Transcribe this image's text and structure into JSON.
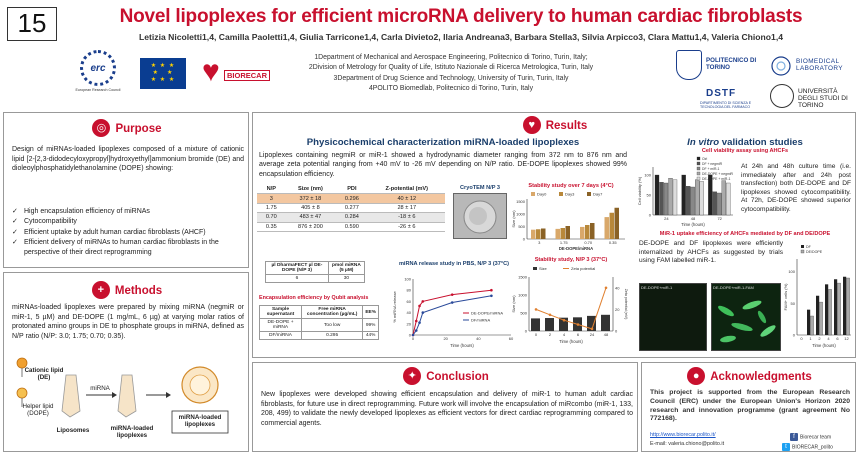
{
  "header": {
    "number": "15",
    "title": "Novel lipoplexes for efficient microRNA delivery to human cardiac fibroblasts",
    "authors": "Letizia Nicoletti1,4, Camilla Paoletti1,4, Giulia Tarricone1,4, Carla Divieto2, Ilaria Andreana3, Barbara Stella3, Silvia Arpicco3, Clara Mattu1,4, Valeria Chiono1,4",
    "affiliations": [
      "1Department of Mechanical and Aerospace Engineering, Politecnico di Torino, Turin, Italy;",
      "2Division of Metrology for Quality of Life, Istituto Nazionale di Ricerca Metrologica, Turin, Italy",
      "3Department of Drug Science and Technology, University of Turin, Turin, Italy",
      "4POLITO Biomedlab, Politecnico di Torino, Turin, Italy"
    ]
  },
  "logos": {
    "erc": "erc",
    "erc_caption": "European Research Council",
    "biorecar": "BIORECAR",
    "polito": "POLITECNICO DI TORINO",
    "biomed": "BIOMEDICAL LABORATORY",
    "dstf": "DSTF",
    "dstf_sub": "DIPARTIMENTO DI SCIENZA E TECNOLOGIA DEL FARMACO",
    "unito": "UNIVERSITÀ DEGLI STUDI DI TORINO"
  },
  "purpose": {
    "title": "Purpose",
    "text": "Design of miRNAs-loaded lipoplexes composed of a mixture of cationic lipid [2-[2,3-didodecyloxypropyl]hydroxyethyl]ammonium bromide (DE) and dioleoylphosphatidylethanolamine (DOPE) showing:",
    "bullets": [
      "High encapsulation efficiency of miRNAs",
      "Cytocompatibility",
      "Efficient uptake by adult human cardiac fibroblasts (AHCF)",
      "Efficient delivery of miRNAs to human cardiac fibroblasts in the perspective of their direct reprogramming"
    ]
  },
  "methods": {
    "title": "Methods",
    "text": "miRNAs-loaded lipoplexes were prepared by mixing miRNA (negmiR or miR-1, 5 µM) and DE-DOPE (1 mg/mL, 6 µg) at varying molar ratios of protonated amino groups in DE to phosphate groups in miRNA, defined as N/P ratio (N/P: 3.0; 1.75; 0.70; 0.35).",
    "cationic_lipid": "Cationic lipid (DE)",
    "helper_lipid": "Helper lipid (DOPE)",
    "liposomes": "Liposomes",
    "mirna": "miRNA",
    "loaded": "miRNA-loaded lipoplexes",
    "result": "miRNA-loaded lipoplexes"
  },
  "results": {
    "title": "Results",
    "physchem": {
      "title": "Physicochemical characterization miRNA-loaded lipoplexes",
      "text": "Lipoplexes containing negmiR or miR-1 showed a hydrodynamic diameter ranging from 372 nm to 876 nm and average zeta potential ranging from +40 mV to -26 mV depending on N/P ratio. DE-DOPE lipoplexes showed 99% encapsulation efficiency.",
      "table_headers": [
        "N/P",
        "Size (nm)",
        "PDI",
        "Z-potential (mV)"
      ],
      "table_rows": [
        [
          "3",
          "372 ± 18",
          "0.296",
          "40 ± 12"
        ],
        [
          "1.75",
          "405 ± 8",
          "0.277",
          "28 ± 17"
        ],
        [
          "0.70",
          "483 ± 47",
          "0.284",
          "-18 ± 6"
        ],
        [
          "0.35",
          "876 ± 200",
          "0.590",
          "-26 ± 6"
        ]
      ],
      "cryotem": "CryoTEM N/P 3",
      "stability_title": "Stability study over 7 days (4°C)",
      "stability_legend": [
        "Day0",
        "Day3",
        "Day7"
      ],
      "stability_xlabel": "DE-DOPE/miRNA",
      "stability_ylabel": "Size (nm)",
      "stability_cats": [
        "3",
        "1.75",
        "0.70",
        "0.35"
      ],
      "stab2_title": "Stability study, N/P 3 (37°C)",
      "stab2_legend": [
        "Size",
        "Zeta potential"
      ],
      "stab2_xlabel": "Time (hours)",
      "stab2_ylabel": "Size (nm)",
      "stab2_ylabel2": "Zeta potential (mV)",
      "release_title": "miRNA release study in PBS, N/P 3 (37°C)",
      "release_series": [
        "DE-DOPE/miRNA",
        "DF/miRNA"
      ],
      "release_xlabel": "Time (hours)",
      "release_ylabel": "% miRNA release",
      "small_table_h": [
        "µl DharmaFECT µl DE-DOPE (N/P 3)",
        "pmol miRNA (5 µM)"
      ],
      "small_table_r": [
        "6",
        "30"
      ],
      "qubit_title": "Encapsulation efficiency by Qubit analysis",
      "qubit_h": [
        "Sample supernatant",
        "Free miRNA concentration (µg/mL)",
        "EE%"
      ],
      "qubit_r1": [
        "DE-DOPE + miRNA",
        "Too low",
        "99%"
      ],
      "qubit_r2": [
        "DF/miRNA",
        "0.295",
        "44%"
      ]
    },
    "invitro": {
      "title_em": "In vitro",
      "title_rest": " validation studies",
      "viability_title": "Cell viability assay using AHCFs",
      "viability_text": "At 24h and 48h culture time (i.e. immediately after and 24h post transfection) both DE-DOPE and DF lipoplexes showed cytocompatibility. At 72h, DE-DOPE showed superior cytocompatibility.",
      "viability_legend": [
        "Ctrl",
        "DF + negmiR",
        "DF + miR-1",
        "DE-DOPE + negmiR",
        "DE-DOPE + miR-1"
      ],
      "viability_ylabel": "Cell viability (%)",
      "viability_xlabel": "Time (hours)",
      "viability_ticks": [
        "24",
        "48",
        "72"
      ],
      "uptake_title": "MiR-1 uptake efficiency of AHCFs mediated by DF and DE/DOPE",
      "uptake_text": "DE-DOPE and DF lipoplexes were efficiently internalized by AHCFs as suggested by trials using FAM labelled miR-1.",
      "img1_label": "DE-DOPE+miR-1",
      "img2_label": "DE-DOPE+miR-1-FAM",
      "uptake_ylabel": "FAM+ cells (%)",
      "uptake_xlabel": "Time (hours)",
      "uptake_legend": [
        "DF",
        "DE/DOPE"
      ],
      "uptake_ticks": [
        "0",
        "1",
        "2",
        "4",
        "6",
        "12"
      ]
    }
  },
  "conclusion": {
    "title": "Conclusion",
    "text": "New lipoplexes were developed showing efficient encapsulation and delivery of miR-1 to human adult cardiac fibroblasts, for future use in direct reprogramming. Future work will involve the encapsulation of miRcombo (miR-1, 133, 208, 499) to validate the newly developed lipoplexes as efficient vectors for direct cardiac reprogramming compared to commercial agents."
  },
  "ack": {
    "title": "Acknowledgments",
    "text": "This project is supported from the European Research Council (ERC) under the European Union's Horizon 2020 research and innovation programme (grant agreement No 772168).",
    "link": "http://www.biorecar.polito.it/",
    "email": "E-mail: valeria.chiono@polito.it",
    "social1": "Biorecar team",
    "social2": "BIORECAR_polito"
  },
  "colors": {
    "accent": "#c8102e",
    "navy": "#1a3e6b",
    "bar_day0": "#d9a86a",
    "bar_day3": "#b8883a",
    "bar_day7": "#8a6226"
  }
}
